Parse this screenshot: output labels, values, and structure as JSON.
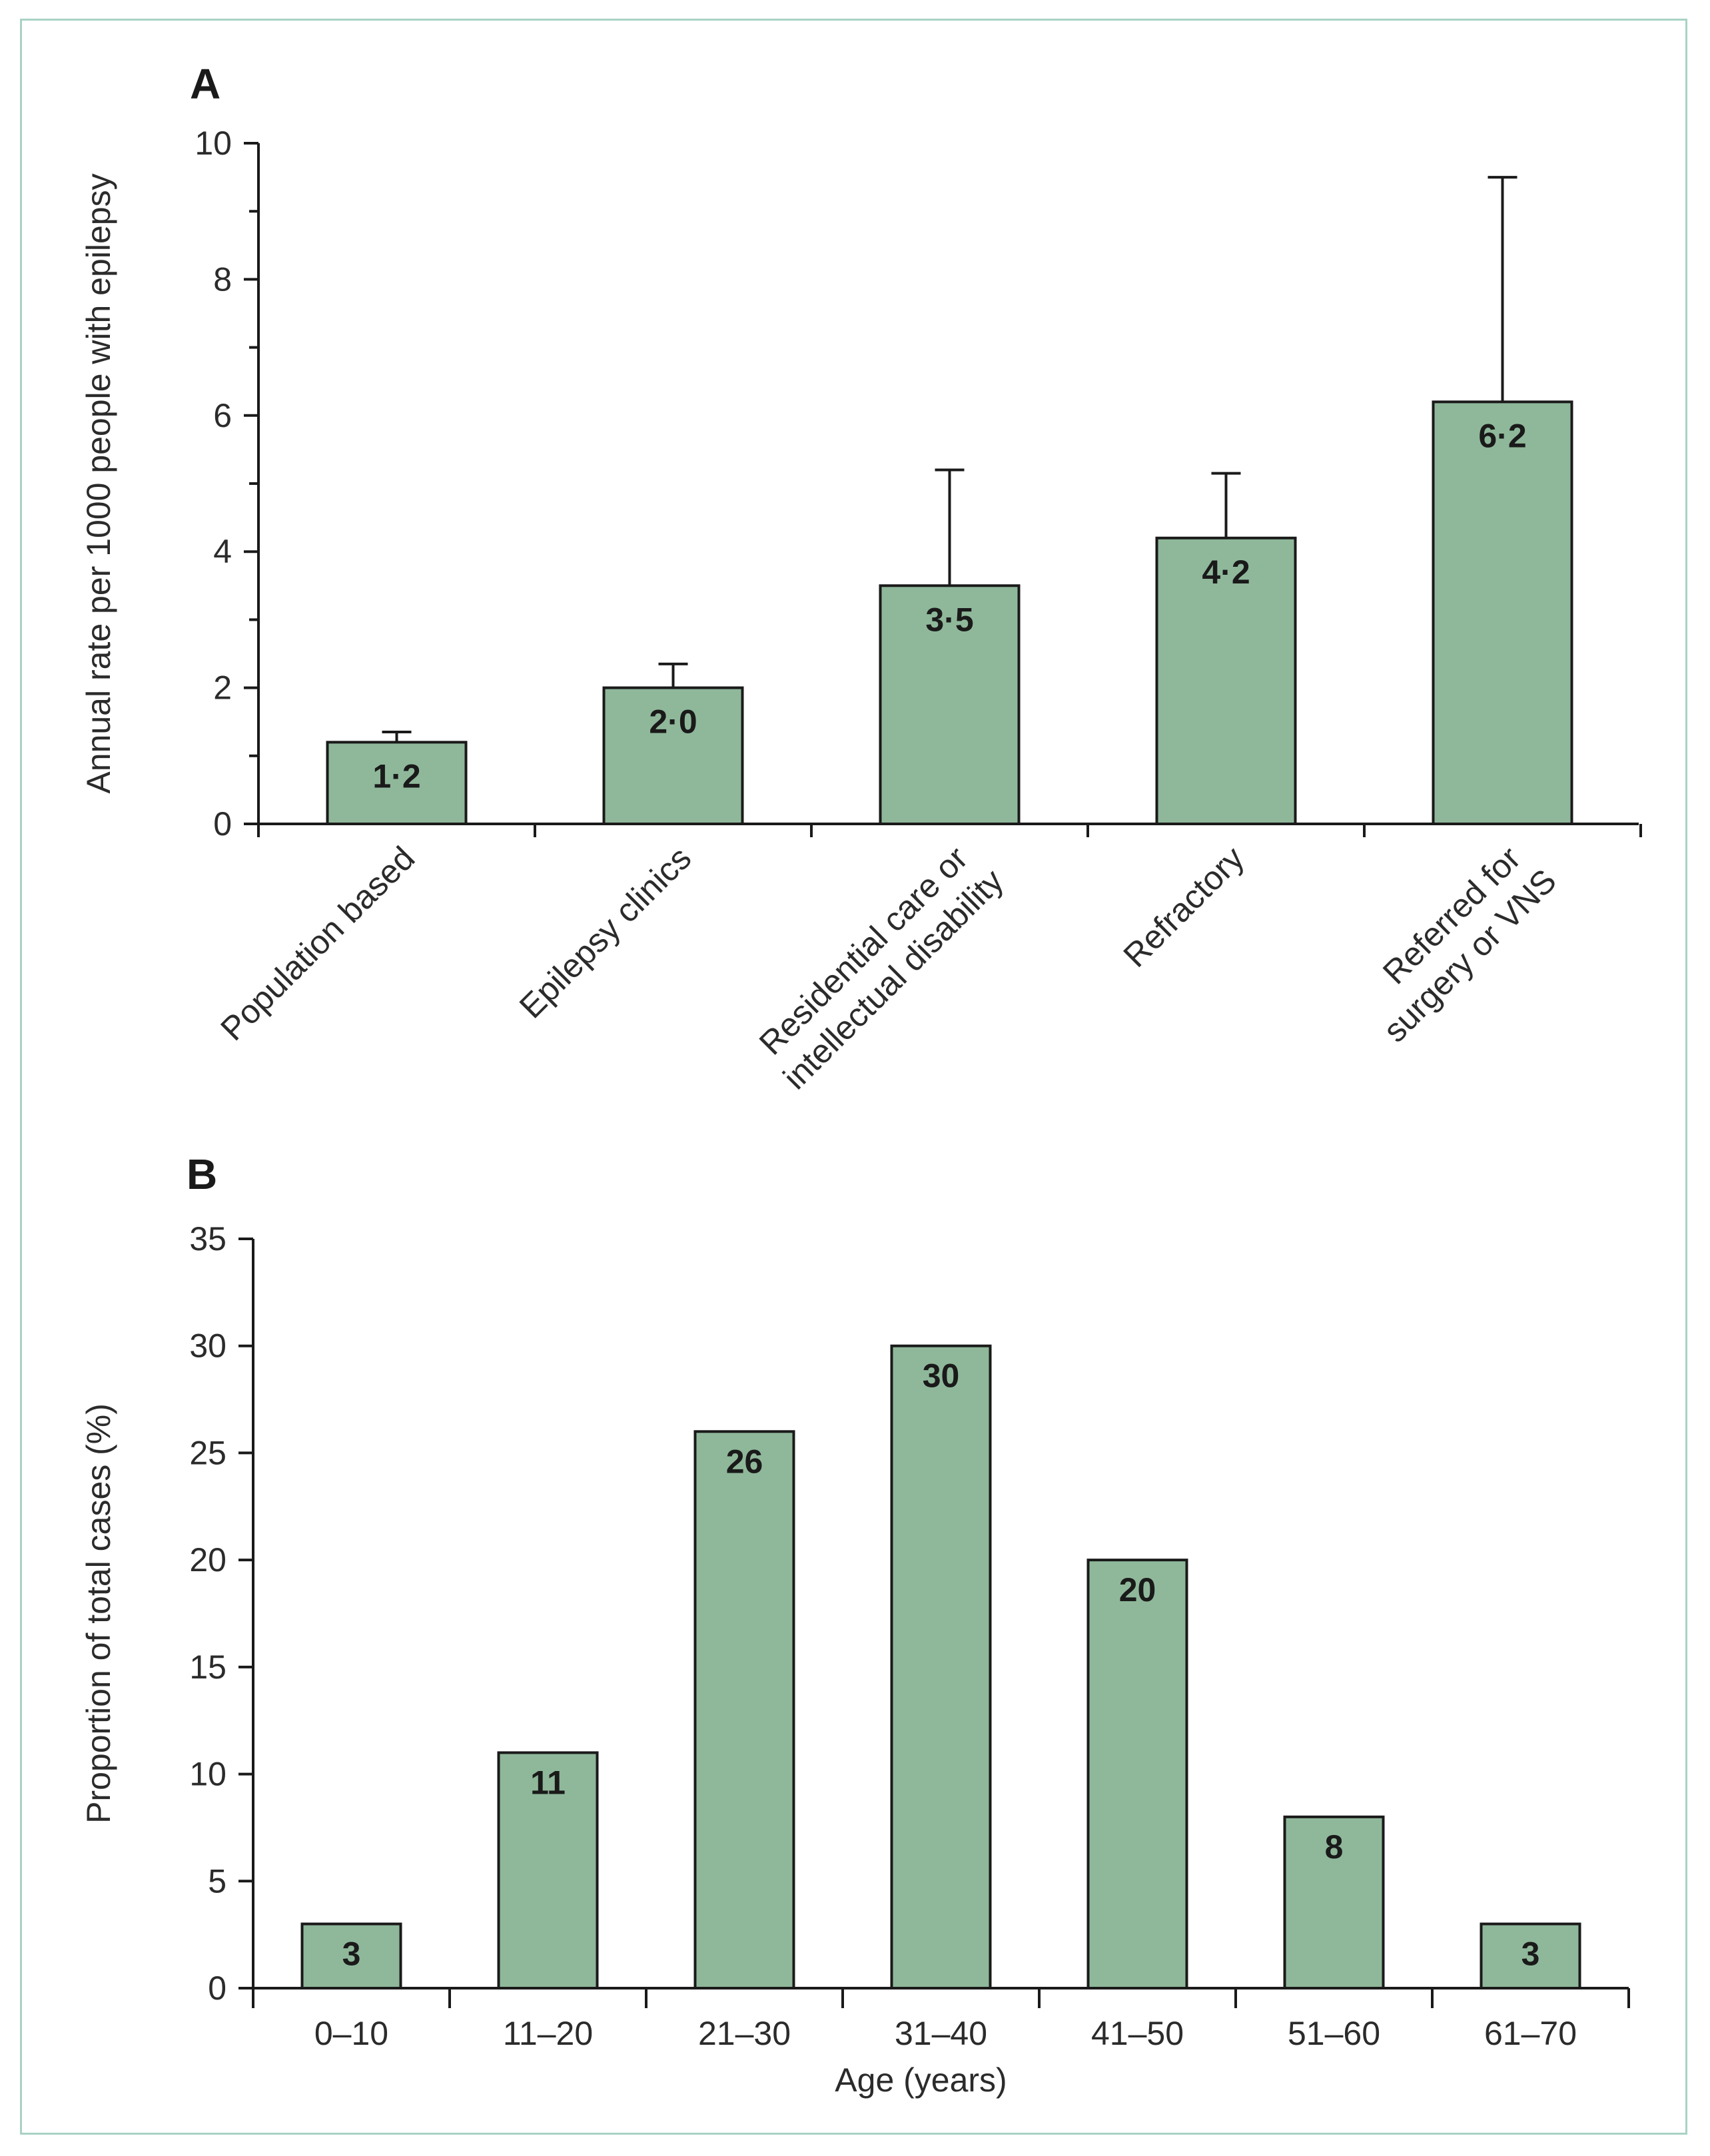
{
  "colors": {
    "bar_fill": "#8fb89a",
    "frame": "#a9d2c4",
    "stroke": "#1a1a1a"
  },
  "chart_data": [
    {
      "panel": "A",
      "type": "bar",
      "categories": [
        [
          "Population based"
        ],
        [
          "Epilepsy clinics"
        ],
        [
          "Residential care or",
          "intellectual disability"
        ],
        [
          "Refractory"
        ],
        [
          "Referred for",
          "surgery or VNS"
        ]
      ],
      "values": [
        1.2,
        2.0,
        3.5,
        4.2,
        6.2
      ],
      "value_labels": [
        "1·2",
        "2·0",
        "3·5",
        "4·2",
        "6·2"
      ],
      "error_upper": [
        1.35,
        2.35,
        5.2,
        5.15,
        9.5
      ],
      "ylabel": "Annual rate per 1000 people with epilepsy",
      "xlabel": "",
      "ylim": [
        0,
        10
      ],
      "yticks": [
        0,
        2,
        4,
        6,
        8,
        10
      ],
      "yminor_step": 1
    },
    {
      "panel": "B",
      "type": "bar",
      "categories": [
        "0–10",
        "11–20",
        "21–30",
        "31–40",
        "41–50",
        "51–60",
        "61–70"
      ],
      "values": [
        3,
        11,
        26,
        30,
        20,
        8,
        3
      ],
      "value_labels": [
        "3",
        "11",
        "26",
        "30",
        "20",
        "8",
        "3"
      ],
      "ylabel": "Proportion of total cases (%)",
      "xlabel": "Age (years)",
      "ylim": [
        0,
        35
      ],
      "yticks": [
        0,
        5,
        10,
        15,
        20,
        25,
        30,
        35
      ]
    }
  ]
}
